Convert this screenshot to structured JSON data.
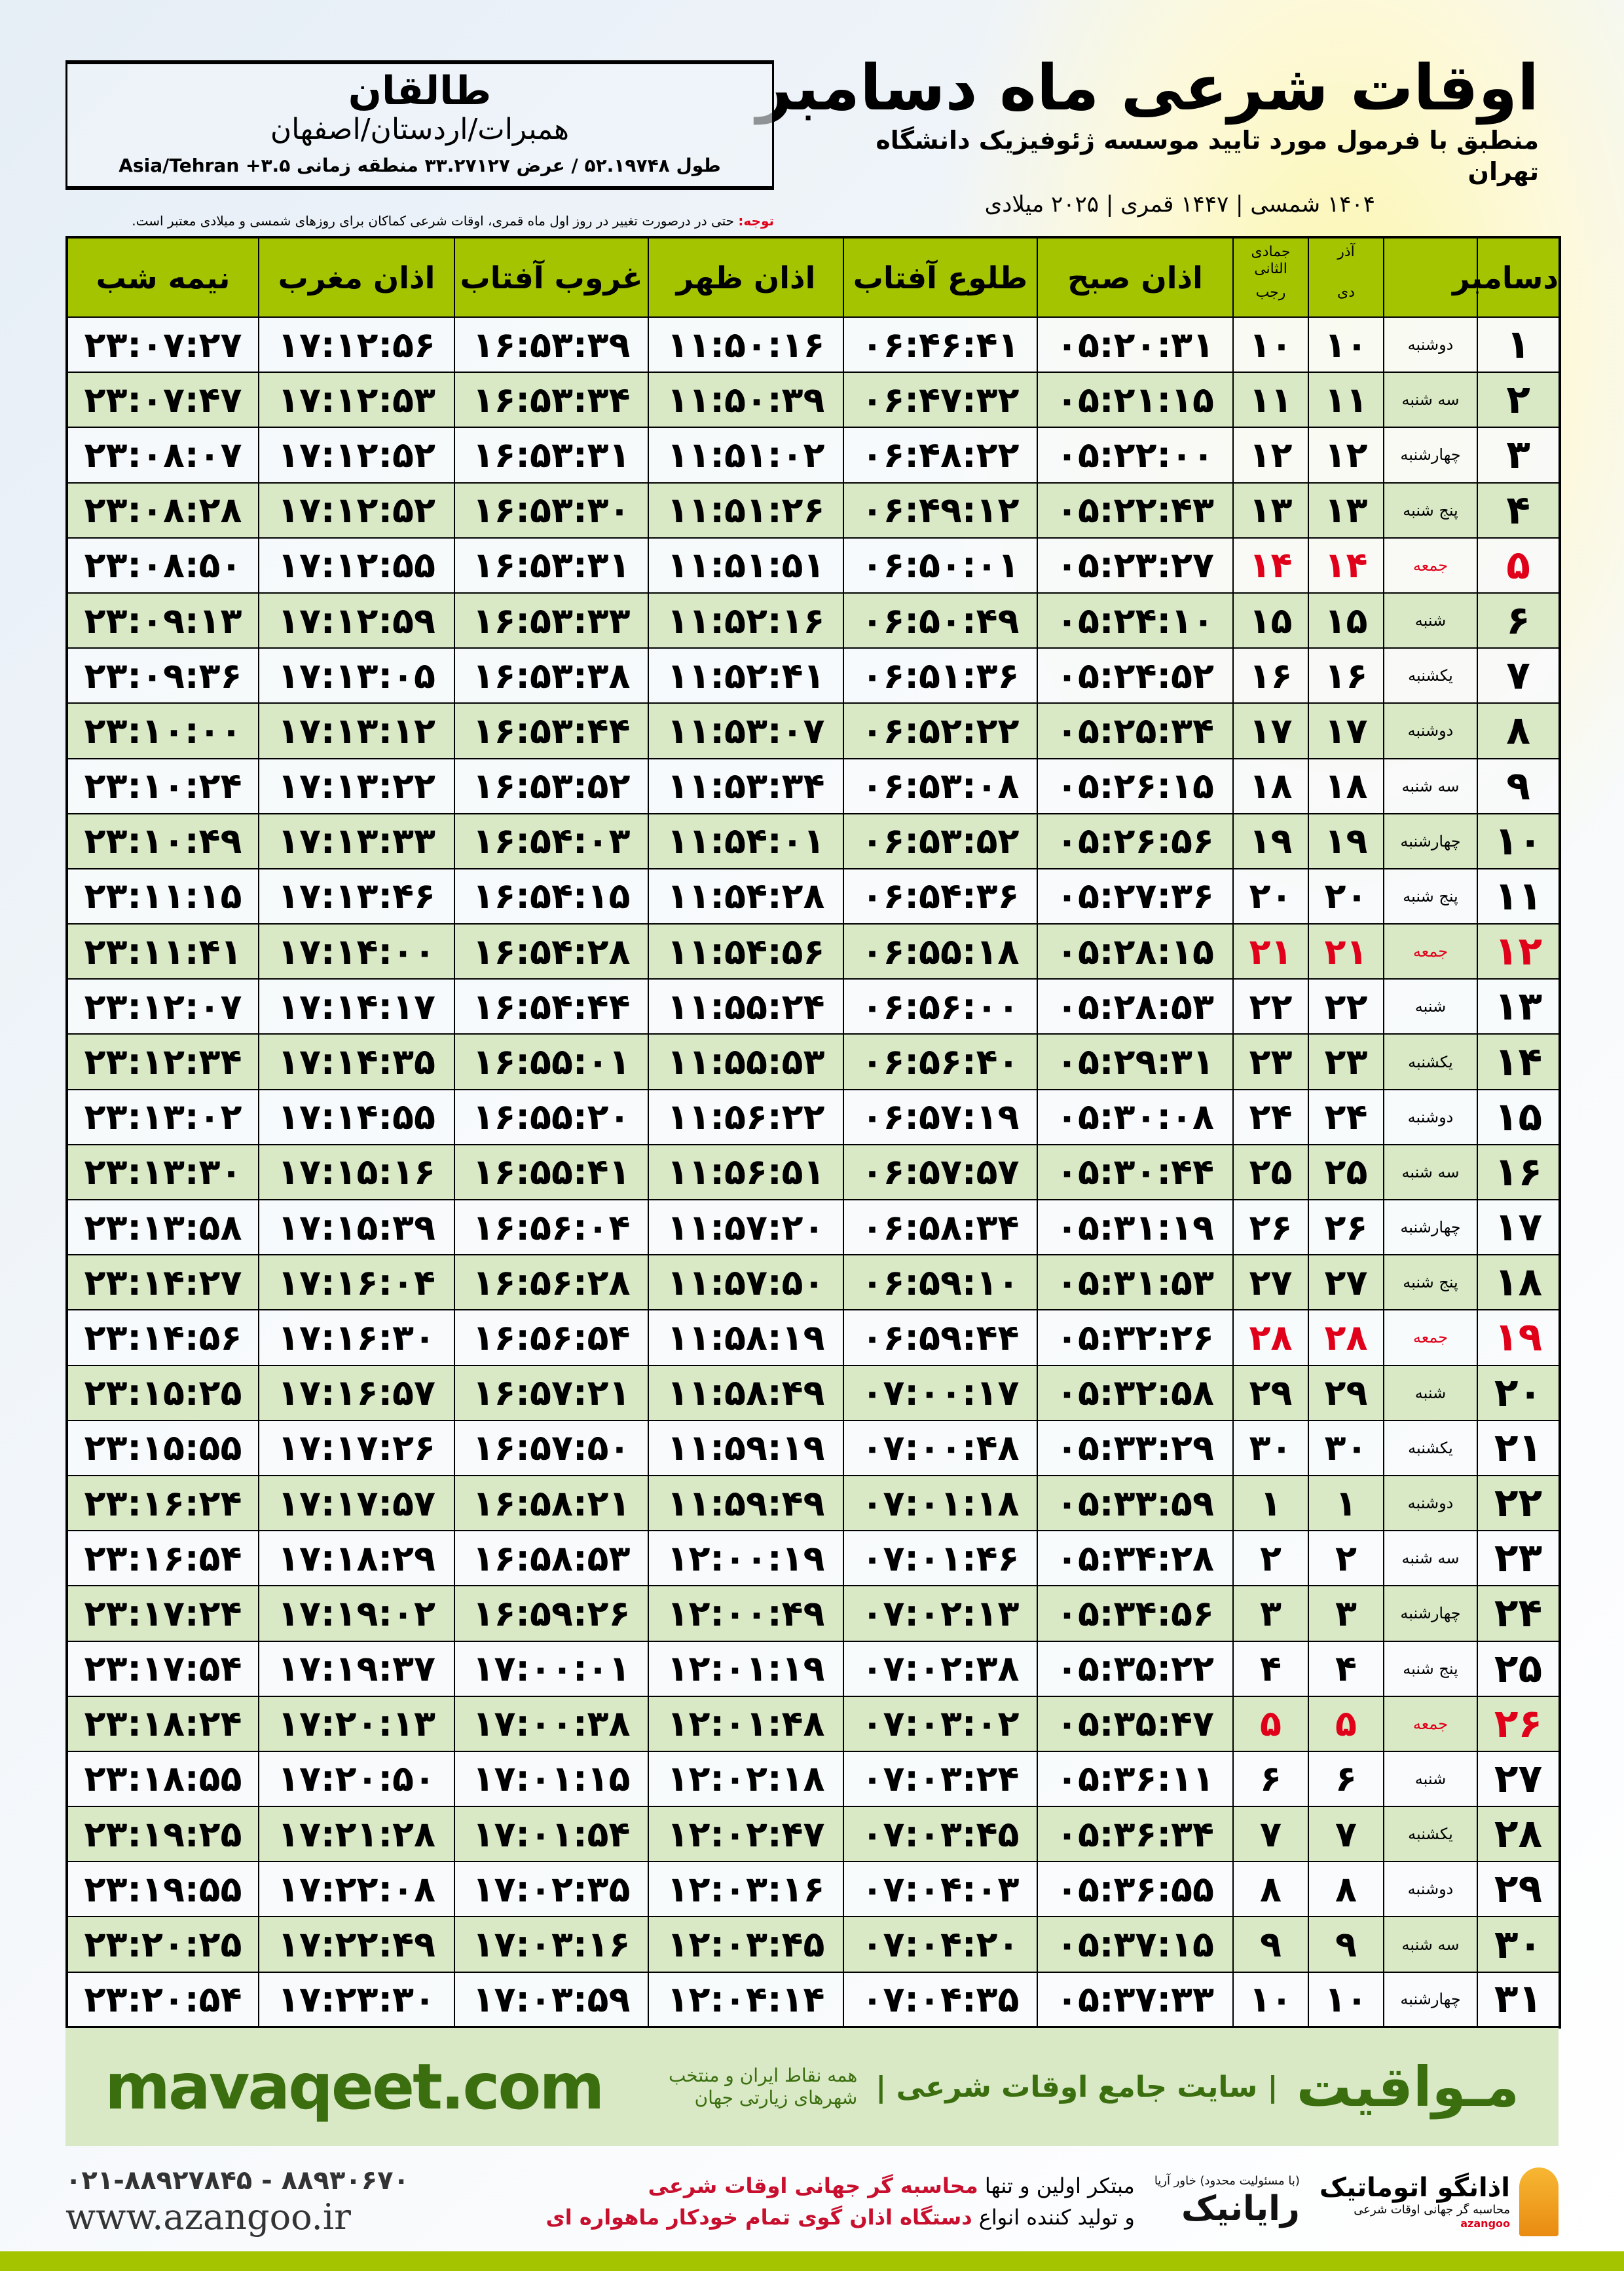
{
  "header": {
    "title": "اوقات شرعی ماه دسامبر",
    "subtitle": "منطبق با فرمول مورد تایید موسسه ژئوفیزیک دانشگاه تهران",
    "dates": "۱۴۰۴ شمسی | ۱۴۴۷ قمری | ۲۰۲۵ میلادی"
  },
  "location": {
    "city": "طالقان",
    "region": "همبرات/اردستان/اصفهان",
    "coords": "طول ۵۲.۱۹۷۴۸ / عرض ۳۳.۲۷۱۲۷ منطقه زمانی Asia/Tehran +۳.۵"
  },
  "note": {
    "label": "توجه:",
    "text": " حتی در درصورت تغییر در روز اول ماه قمری، اوقات شرعی کماکان برای روزهای شمسی و میلادی معتبر است."
  },
  "table": {
    "headers": {
      "month": "دسامبر",
      "dey": "دی",
      "azar": "آذر",
      "jumada": "جمادی الثانی",
      "rajab": "رجب",
      "sobh": "اذان صبح",
      "tolou": "طلوع آفتاب",
      "zohr": "اذان ظهر",
      "ghoroob": "غروب آفتاب",
      "maghreb": "اذان مغرب",
      "nimeh": "نیمه شب"
    },
    "friday_color": "#e0001a",
    "rows": [
      [
        "۱",
        "دوشنبه",
        "۱۰",
        "۱۰",
        "۰۵:۲۰:۳۱",
        "۰۶:۴۶:۴۱",
        "۱۱:۵۰:۱۶",
        "۱۶:۵۳:۳۹",
        "۱۷:۱۲:۵۶",
        "۲۳:۰۷:۲۷"
      ],
      [
        "۲",
        "سه شنبه",
        "۱۱",
        "۱۱",
        "۰۵:۲۱:۱۵",
        "۰۶:۴۷:۳۲",
        "۱۱:۵۰:۳۹",
        "۱۶:۵۳:۳۴",
        "۱۷:۱۲:۵۳",
        "۲۳:۰۷:۴۷"
      ],
      [
        "۳",
        "چهارشنبه",
        "۱۲",
        "۱۲",
        "۰۵:۲۲:۰۰",
        "۰۶:۴۸:۲۲",
        "۱۱:۵۱:۰۲",
        "۱۶:۵۳:۳۱",
        "۱۷:۱۲:۵۲",
        "۲۳:۰۸:۰۷"
      ],
      [
        "۴",
        "پنج شنبه",
        "۱۳",
        "۱۳",
        "۰۵:۲۲:۴۳",
        "۰۶:۴۹:۱۲",
        "۱۱:۵۱:۲۶",
        "۱۶:۵۳:۳۰",
        "۱۷:۱۲:۵۲",
        "۲۳:۰۸:۲۸"
      ],
      [
        "۵",
        "جمعه",
        "۱۴",
        "۱۴",
        "۰۵:۲۳:۲۷",
        "۰۶:۵۰:۰۱",
        "۱۱:۵۱:۵۱",
        "۱۶:۵۳:۳۱",
        "۱۷:۱۲:۵۵",
        "۲۳:۰۸:۵۰"
      ],
      [
        "۶",
        "شنبه",
        "۱۵",
        "۱۵",
        "۰۵:۲۴:۱۰",
        "۰۶:۵۰:۴۹",
        "۱۱:۵۲:۱۶",
        "۱۶:۵۳:۳۳",
        "۱۷:۱۲:۵۹",
        "۲۳:۰۹:۱۳"
      ],
      [
        "۷",
        "یکشنبه",
        "۱۶",
        "۱۶",
        "۰۵:۲۴:۵۲",
        "۰۶:۵۱:۳۶",
        "۱۱:۵۲:۴۱",
        "۱۶:۵۳:۳۸",
        "۱۷:۱۳:۰۵",
        "۲۳:۰۹:۳۶"
      ],
      [
        "۸",
        "دوشنبه",
        "۱۷",
        "۱۷",
        "۰۵:۲۵:۳۴",
        "۰۶:۵۲:۲۲",
        "۱۱:۵۳:۰۷",
        "۱۶:۵۳:۴۴",
        "۱۷:۱۳:۱۲",
        "۲۳:۱۰:۰۰"
      ],
      [
        "۹",
        "سه شنبه",
        "۱۸",
        "۱۸",
        "۰۵:۲۶:۱۵",
        "۰۶:۵۳:۰۸",
        "۱۱:۵۳:۳۴",
        "۱۶:۵۳:۵۲",
        "۱۷:۱۳:۲۲",
        "۲۳:۱۰:۲۴"
      ],
      [
        "۱۰",
        "چهارشنبه",
        "۱۹",
        "۱۹",
        "۰۵:۲۶:۵۶",
        "۰۶:۵۳:۵۲",
        "۱۱:۵۴:۰۱",
        "۱۶:۵۴:۰۳",
        "۱۷:۱۳:۳۳",
        "۲۳:۱۰:۴۹"
      ],
      [
        "۱۱",
        "پنج شنبه",
        "۲۰",
        "۲۰",
        "۰۵:۲۷:۳۶",
        "۰۶:۵۴:۳۶",
        "۱۱:۵۴:۲۸",
        "۱۶:۵۴:۱۵",
        "۱۷:۱۳:۴۶",
        "۲۳:۱۱:۱۵"
      ],
      [
        "۱۲",
        "جمعه",
        "۲۱",
        "۲۱",
        "۰۵:۲۸:۱۵",
        "۰۶:۵۵:۱۸",
        "۱۱:۵۴:۵۶",
        "۱۶:۵۴:۲۸",
        "۱۷:۱۴:۰۰",
        "۲۳:۱۱:۴۱"
      ],
      [
        "۱۳",
        "شنبه",
        "۲۲",
        "۲۲",
        "۰۵:۲۸:۵۳",
        "۰۶:۵۶:۰۰",
        "۱۱:۵۵:۲۴",
        "۱۶:۵۴:۴۴",
        "۱۷:۱۴:۱۷",
        "۲۳:۱۲:۰۷"
      ],
      [
        "۱۴",
        "یکشنبه",
        "۲۳",
        "۲۳",
        "۰۵:۲۹:۳۱",
        "۰۶:۵۶:۴۰",
        "۱۱:۵۵:۵۳",
        "۱۶:۵۵:۰۱",
        "۱۷:۱۴:۳۵",
        "۲۳:۱۲:۳۴"
      ],
      [
        "۱۵",
        "دوشنبه",
        "۲۴",
        "۲۴",
        "۰۵:۳۰:۰۸",
        "۰۶:۵۷:۱۹",
        "۱۱:۵۶:۲۲",
        "۱۶:۵۵:۲۰",
        "۱۷:۱۴:۵۵",
        "۲۳:۱۳:۰۲"
      ],
      [
        "۱۶",
        "سه شنبه",
        "۲۵",
        "۲۵",
        "۰۵:۳۰:۴۴",
        "۰۶:۵۷:۵۷",
        "۱۱:۵۶:۵۱",
        "۱۶:۵۵:۴۱",
        "۱۷:۱۵:۱۶",
        "۲۳:۱۳:۳۰"
      ],
      [
        "۱۷",
        "چهارشنبه",
        "۲۶",
        "۲۶",
        "۰۵:۳۱:۱۹",
        "۰۶:۵۸:۳۴",
        "۱۱:۵۷:۲۰",
        "۱۶:۵۶:۰۴",
        "۱۷:۱۵:۳۹",
        "۲۳:۱۳:۵۸"
      ],
      [
        "۱۸",
        "پنج شنبه",
        "۲۷",
        "۲۷",
        "۰۵:۳۱:۵۳",
        "۰۶:۵۹:۱۰",
        "۱۱:۵۷:۵۰",
        "۱۶:۵۶:۲۸",
        "۱۷:۱۶:۰۴",
        "۲۳:۱۴:۲۷"
      ],
      [
        "۱۹",
        "جمعه",
        "۲۸",
        "۲۸",
        "۰۵:۳۲:۲۶",
        "۰۶:۵۹:۴۴",
        "۱۱:۵۸:۱۹",
        "۱۶:۵۶:۵۴",
        "۱۷:۱۶:۳۰",
        "۲۳:۱۴:۵۶"
      ],
      [
        "۲۰",
        "شنبه",
        "۲۹",
        "۲۹",
        "۰۵:۳۲:۵۸",
        "۰۷:۰۰:۱۷",
        "۱۱:۵۸:۴۹",
        "۱۶:۵۷:۲۱",
        "۱۷:۱۶:۵۷",
        "۲۳:۱۵:۲۵"
      ],
      [
        "۲۱",
        "یکشنبه",
        "۳۰",
        "۳۰",
        "۰۵:۳۳:۲۹",
        "۰۷:۰۰:۴۸",
        "۱۱:۵۹:۱۹",
        "۱۶:۵۷:۵۰",
        "۱۷:۱۷:۲۶",
        "۲۳:۱۵:۵۵"
      ],
      [
        "۲۲",
        "دوشنبه",
        "۱",
        "۱",
        "۰۵:۳۳:۵۹",
        "۰۷:۰۱:۱۸",
        "۱۱:۵۹:۴۹",
        "۱۶:۵۸:۲۱",
        "۱۷:۱۷:۵۷",
        "۲۳:۱۶:۲۴"
      ],
      [
        "۲۳",
        "سه شنبه",
        "۲",
        "۲",
        "۰۵:۳۴:۲۸",
        "۰۷:۰۱:۴۶",
        "۱۲:۰۰:۱۹",
        "۱۶:۵۸:۵۳",
        "۱۷:۱۸:۲۹",
        "۲۳:۱۶:۵۴"
      ],
      [
        "۲۴",
        "چهارشنبه",
        "۳",
        "۳",
        "۰۵:۳۴:۵۶",
        "۰۷:۰۲:۱۳",
        "۱۲:۰۰:۴۹",
        "۱۶:۵۹:۲۶",
        "۱۷:۱۹:۰۲",
        "۲۳:۱۷:۲۴"
      ],
      [
        "۲۵",
        "پنج شنبه",
        "۴",
        "۴",
        "۰۵:۳۵:۲۲",
        "۰۷:۰۲:۳۸",
        "۱۲:۰۱:۱۹",
        "۱۷:۰۰:۰۱",
        "۱۷:۱۹:۳۷",
        "۲۳:۱۷:۵۴"
      ],
      [
        "۲۶",
        "جمعه",
        "۵",
        "۵",
        "۰۵:۳۵:۴۷",
        "۰۷:۰۳:۰۲",
        "۱۲:۰۱:۴۸",
        "۱۷:۰۰:۳۸",
        "۱۷:۲۰:۱۳",
        "۲۳:۱۸:۲۴"
      ],
      [
        "۲۷",
        "شنبه",
        "۶",
        "۶",
        "۰۵:۳۶:۱۱",
        "۰۷:۰۳:۲۴",
        "۱۲:۰۲:۱۸",
        "۱۷:۰۱:۱۵",
        "۱۷:۲۰:۵۰",
        "۲۳:۱۸:۵۵"
      ],
      [
        "۲۸",
        "یکشنبه",
        "۷",
        "۷",
        "۰۵:۳۶:۳۴",
        "۰۷:۰۳:۴۵",
        "۱۲:۰۲:۴۷",
        "۱۷:۰۱:۵۴",
        "۱۷:۲۱:۲۸",
        "۲۳:۱۹:۲۵"
      ],
      [
        "۲۹",
        "دوشنبه",
        "۸",
        "۸",
        "۰۵:۳۶:۵۵",
        "۰۷:۰۴:۰۳",
        "۱۲:۰۳:۱۶",
        "۱۷:۰۲:۳۵",
        "۱۷:۲۲:۰۸",
        "۲۳:۱۹:۵۵"
      ],
      [
        "۳۰",
        "سه شنبه",
        "۹",
        "۹",
        "۰۵:۳۷:۱۵",
        "۰۷:۰۴:۲۰",
        "۱۲:۰۳:۴۵",
        "۱۷:۰۳:۱۶",
        "۱۷:۲۲:۴۹",
        "۲۳:۲۰:۲۵"
      ],
      [
        "۳۱",
        "چهارشنبه",
        "۱۰",
        "۱۰",
        "۰۵:۳۷:۳۳",
        "۰۷:۰۴:۳۵",
        "۱۲:۰۴:۱۴",
        "۱۷:۰۳:۵۹",
        "۱۷:۲۳:۳۰",
        "۲۳:۲۰:۵۴"
      ]
    ]
  },
  "footer": {
    "brand": "مـواقیت",
    "tagline": "| سایت جامع اوقات شرعی |",
    "tagline_sub": "همه نقاط ایران و منتخب شهرهای زیارتی جهان",
    "site": "mavaqeet.com",
    "phone": "۰۲۱-۸۸۹۲۷۸۴۵ - ۸۸۹۳۰۶۷۰",
    "web": "www.azangoo.ir",
    "ad_line1_a": "مبتکر اولین و تنها ",
    "ad_line1_b": "محاسبه گر جهانی اوقات شرعی",
    "ad_line2_a": "و تولید کننده انواع ",
    "ad_line2_b": "دستگاه اذان گوی تمام خودکار ماهواره ای",
    "logo_rayanik": "رایانیک",
    "logo_rayanik_small": "(با مسئولیت محدود) خاور آریا",
    "logo_azangoo": "اذانگو اتوماتیک",
    "logo_azangoo_sub": "محاسبه گر جهانی اوقات شرعی",
    "logo_azangoo_en": "azangoo",
    "accent": "#a4c400",
    "band_color": "#d9e8c5",
    "brand_color": "#3a6e0e"
  }
}
